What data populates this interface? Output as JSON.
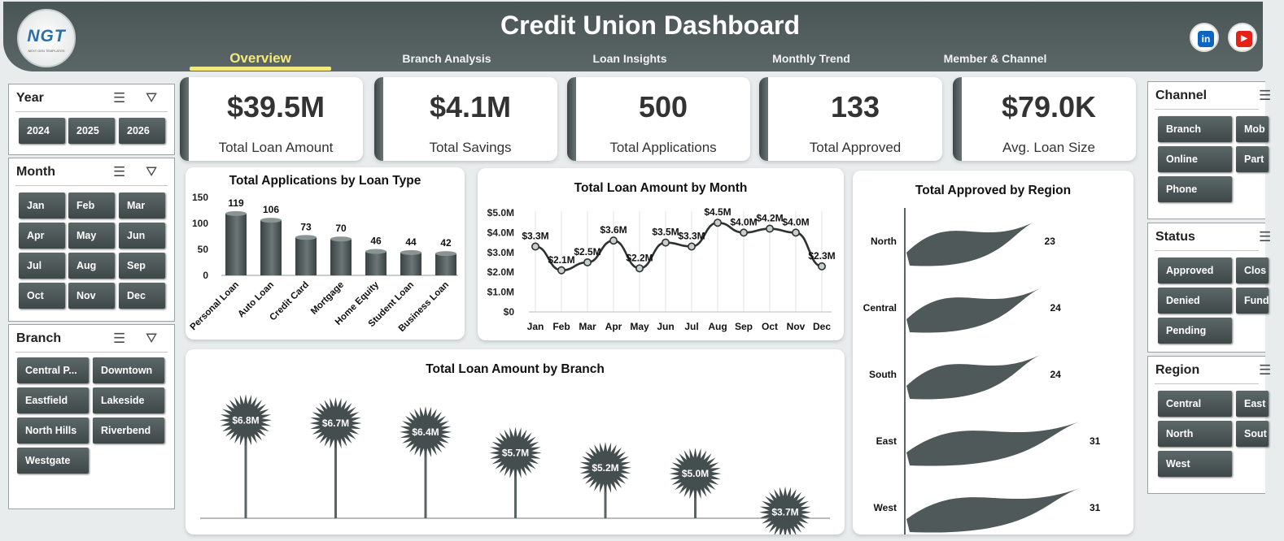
{
  "header": {
    "title": "Credit Union Dashboard",
    "logo_text": "NGT",
    "logo_sub": "NEXT GEN TEMPLATES",
    "tabs": [
      "Overview",
      "Branch Analysis",
      "Loan Insights",
      "Monthly Trend",
      "Member & Channel"
    ],
    "active_tab": "Overview",
    "social": {
      "linkedin": "in",
      "youtube": "▶"
    }
  },
  "colors": {
    "header": "#4f5a5b",
    "accent": "#f4e97a",
    "button": "#4a5455",
    "mark": "#4d5758"
  },
  "slicers": {
    "year": {
      "title": "Year",
      "options": [
        "2024",
        "2025",
        "2026"
      ]
    },
    "month": {
      "title": "Month",
      "options": [
        "Jan",
        "Feb",
        "Mar",
        "Apr",
        "May",
        "Jun",
        "Jul",
        "Aug",
        "Sep",
        "Oct",
        "Nov",
        "Dec"
      ]
    },
    "branch": {
      "title": "Branch",
      "options": [
        "Central P...",
        "Downtown",
        "Eastfield",
        "Lakeside",
        "North Hills",
        "Riverbend",
        "Westgate"
      ]
    },
    "channel": {
      "title": "Channel",
      "options": [
        "Branch",
        "Mob",
        "Online",
        "Part",
        "Phone"
      ]
    },
    "status": {
      "title": "Status",
      "options": [
        "Approved",
        "Clos",
        "Denied",
        "Fund",
        "Pending"
      ]
    },
    "region": {
      "title": "Region",
      "options": [
        "Central",
        "East",
        "North",
        "Sout",
        "West"
      ]
    }
  },
  "kpis": [
    {
      "value": "$39.5M",
      "label": "Total Loan Amount"
    },
    {
      "value": "$4.1M",
      "label": "Total Savings"
    },
    {
      "value": "500",
      "label": "Total Applications"
    },
    {
      "value": "133",
      "label": "Total Approved"
    },
    {
      "value": "$79.0K",
      "label": "Avg. Loan Size"
    }
  ],
  "chart_data": [
    {
      "type": "bar",
      "title": "Total Applications by Loan Type",
      "categories": [
        "Personal Loan",
        "Auto Loan",
        "Credit Card",
        "Mortgage",
        "Home Equity",
        "Student Loan",
        "Business Loan"
      ],
      "values": [
        119,
        106,
        73,
        70,
        46,
        44,
        42
      ],
      "yticks": [
        "0",
        "50",
        "100",
        "150"
      ],
      "ylim": [
        0,
        150
      ]
    },
    {
      "type": "line",
      "title": "Total Loan Amount by Month",
      "categories": [
        "Jan",
        "Feb",
        "Mar",
        "Apr",
        "May",
        "Jun",
        "Jul",
        "Aug",
        "Sep",
        "Oct",
        "Nov",
        "Dec"
      ],
      "values": [
        3.3,
        2.1,
        2.5,
        3.6,
        2.2,
        3.5,
        3.3,
        4.5,
        4.0,
        4.2,
        4.0,
        2.3
      ],
      "labels": [
        "$3.3M",
        "$2.1M",
        "$2.5M",
        "$3.6M",
        "$2.2M",
        "$3.5M",
        "$3.3M",
        "$4.5M",
        "$4.0M",
        "$4.2M",
        "$4.0M",
        "$2.3M"
      ],
      "yticks": [
        "$0",
        "$1.0M",
        "$2.0M",
        "$3.0M",
        "$4.0M",
        "$5.0M"
      ],
      "ylim": [
        0,
        5.0
      ]
    },
    {
      "type": "bar",
      "title": "Total Loan Amount by Branch",
      "values": [
        6.8,
        6.7,
        6.4,
        5.7,
        5.2,
        5.0,
        3.7
      ],
      "labels": [
        "$6.8M",
        "$6.7M",
        "$6.4M",
        "$5.7M",
        "$5.2M",
        "$5.0M",
        "$3.7M"
      ]
    },
    {
      "type": "bar",
      "title": "Total Approved by Region",
      "categories": [
        "North",
        "Central",
        "South",
        "East",
        "West"
      ],
      "values": [
        23,
        24,
        24,
        31,
        31
      ],
      "labels": [
        "23",
        "24",
        "24",
        "31",
        "31"
      ]
    }
  ]
}
